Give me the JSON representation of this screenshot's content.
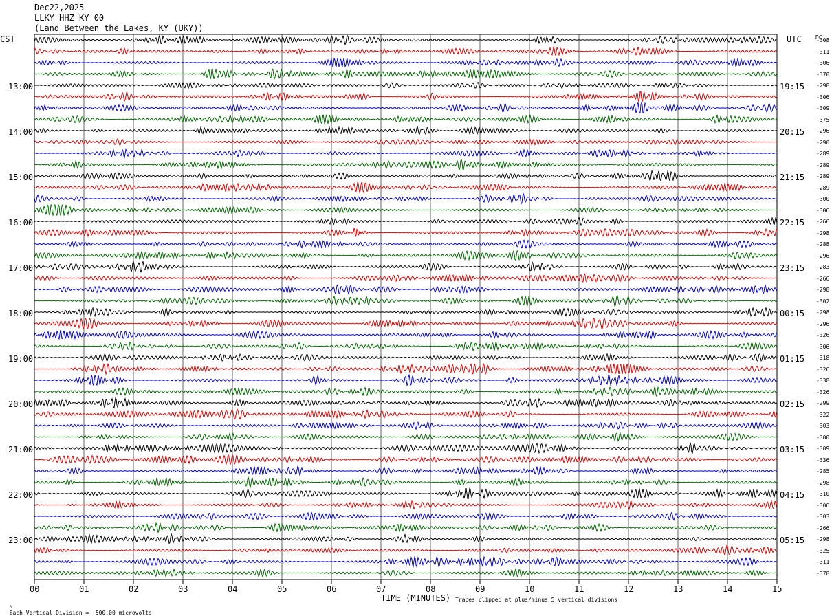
{
  "header": {
    "date": "Dec22,2025",
    "station": "LLKY HHZ KY 00",
    "location": "(Land Between the Lakes, KY (UKY))"
  },
  "labels": {
    "left_zone": "CST",
    "right_zone": "UTC",
    "dc_header": "DC",
    "xlabel": "TIME (MINUTES)",
    "scale_note": "Each Vertical Division =  500.00 microvolts",
    "clip_note": "Traces clipped at plus/minus 5 vertical divisions"
  },
  "chart_data": {
    "type": "line",
    "subtype": "helicorder",
    "xlabel": "TIME (MINUTES)",
    "x_ticks": [
      "00",
      "01",
      "02",
      "03",
      "04",
      "05",
      "06",
      "07",
      "08",
      "09",
      "10",
      "11",
      "12",
      "13",
      "14",
      "15"
    ],
    "xlim": [
      0,
      15
    ],
    "trace_colors": [
      "#000000",
      "#d40000",
      "#0000c8",
      "#006400"
    ],
    "traces_per_hour": 4,
    "cst_labels": [
      "13:00",
      "14:00",
      "15:00",
      "16:00",
      "17:00",
      "18:00",
      "19:00",
      "20:00",
      "21:00",
      "22:00",
      "23:00"
    ],
    "utc_labels": [
      "19:15",
      "20:15",
      "21:15",
      "22:15",
      "23:15",
      "00:15",
      "01:15",
      "02:15",
      "03:15",
      "04:15",
      "05:15"
    ],
    "dc_offsets": [
      "-308",
      "-311",
      "-306",
      "-370",
      "-298",
      "-306",
      "-309",
      "-375",
      "-296",
      "-290",
      "-289",
      "-289",
      "-289",
      "-289",
      "-300",
      "-306",
      "-266",
      "-298",
      "-288",
      "-296",
      "-283",
      "-266",
      "-298",
      "-302",
      "-298",
      "-296",
      "-326",
      "-306",
      "-318",
      "-326",
      "-338",
      "-326",
      "-299",
      "-322",
      "-303",
      "-300",
      "-309",
      "-336",
      "-285",
      "-298",
      "-310",
      "-306",
      "-303",
      "-266",
      "-298",
      "-325",
      "-311",
      "-378"
    ],
    "events": [
      {
        "trace_index": 17,
        "minute": 6.45,
        "description": "impulsive arrival (red trace, 16:15 CST)"
      }
    ],
    "grid": true
  }
}
